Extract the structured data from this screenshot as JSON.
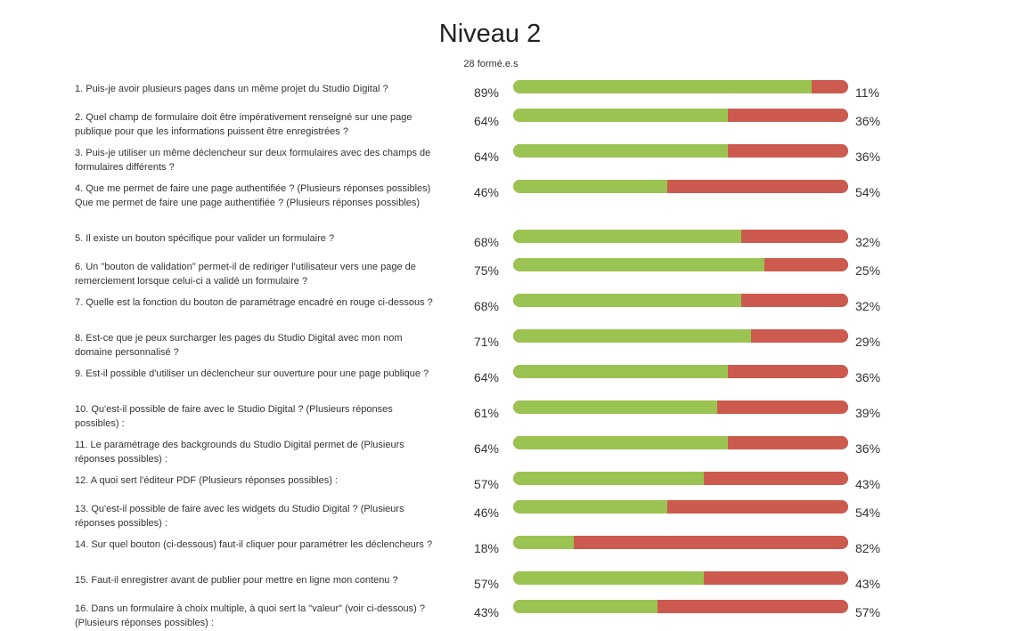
{
  "header": {
    "title": "Niveau 2",
    "subtitle": "28 formé.e.s"
  },
  "colors": {
    "correct": "#9bc351",
    "incorrect": "#cc5a4f"
  },
  "chart_data": {
    "type": "bar",
    "orientation": "horizontal",
    "stacked": true,
    "title": "Niveau 2",
    "subtitle": "28 formé.e.s",
    "categories": [
      "1. Puis-je avoir plusieurs pages dans un même projet du Studio Digital ?",
      "2. Quel champ de formulaire doit être impérativement renseigné sur une page publique pour que les informations puissent être enregistrées ?",
      "3. Puis-je utiliser un même déclencheur sur deux formulaires avec des champs de formulaires différents ?",
      "4. Que me permet de faire une page authentifiée ? (Plusieurs réponses possibles) Que me permet de faire une page authentifiée ? (Plusieurs réponses possibles)",
      "5. Il existe un bouton spécifique pour valider un formulaire ?",
      "6. Un \"bouton de validation\" permet-il de rediriger l'utilisateur vers une page de remerciement lorsque celui-ci a validé un formulaire ?",
      "7. Quelle est la fonction du bouton de paramétrage encadré en rouge ci-dessous ?",
      "8. Est-ce que je peux surcharger les pages du Studio Digital avec mon nom domaine personnalisé ?",
      "9. Est-il possible d'utiliser un déclencheur sur ouverture pour une page publique ?",
      "10. Qu'est-il possible de faire avec le Studio Digital ? (Plusieurs réponses possibles) :",
      "11. Le paramétrage des backgrounds du Studio Digital permet de (Plusieurs réponses possibles) :",
      "12. A quoi sert l'éditeur PDF  (Plusieurs réponses possibles) :",
      "13. Qu'est-il possible de faire avec les widgets du Studio Digital ? (Plusieurs réponses possibles) :",
      "14. Sur quel bouton (ci-dessous) faut-il cliquer pour paramétrer les déclencheurs ?",
      "15. Faut-il enregistrer avant de publier pour mettre en ligne mon contenu ?",
      "16. Dans un formulaire à choix multiple, à quoi sert la \"valeur\" (voir ci-dessous) ? (Plusieurs réponses possibles) :"
    ],
    "series": [
      {
        "values": [
          89,
          64,
          64,
          46,
          68,
          75,
          68,
          71,
          64,
          61,
          64,
          57,
          46,
          18,
          57,
          43
        ]
      },
      {
        "values": [
          11,
          36,
          36,
          54,
          32,
          25,
          32,
          29,
          36,
          39,
          36,
          43,
          54,
          82,
          43,
          57
        ]
      }
    ],
    "value_labels_left": [
      "89%",
      "64%",
      "64%",
      "46%",
      "68%",
      "75%",
      "68%",
      "71%",
      "64%",
      "61%",
      "64%",
      "57%",
      "46%",
      "18%",
      "57%",
      "43%"
    ],
    "value_labels_right": [
      "11%",
      "36%",
      "36%",
      "54%",
      "32%",
      "25%",
      "32%",
      "29%",
      "36%",
      "39%",
      "36%",
      "43%",
      "54%",
      "82%",
      "43%",
      "57%"
    ],
    "xlim": [
      0,
      100
    ],
    "grid": false,
    "legend": "none"
  }
}
